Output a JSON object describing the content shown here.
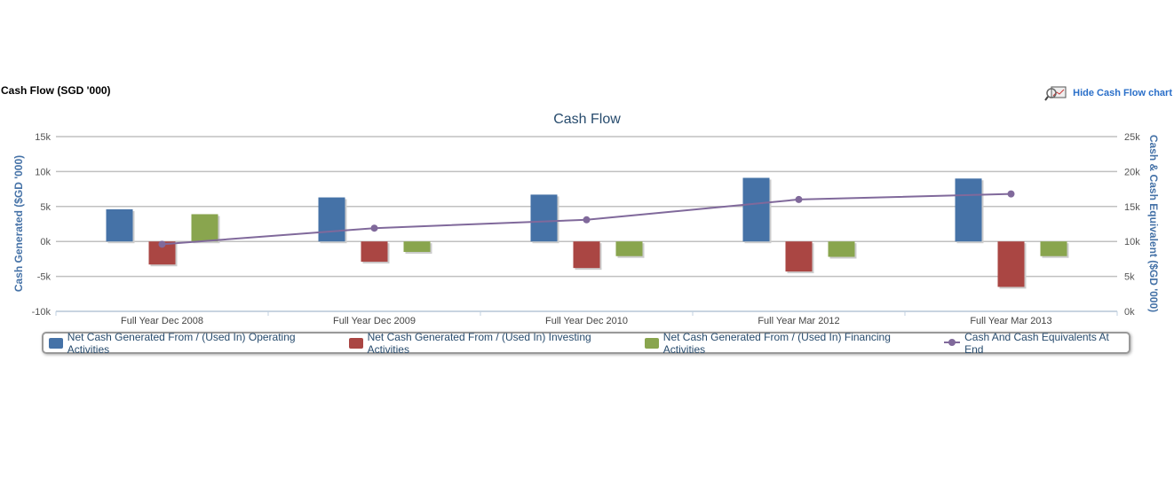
{
  "header": {
    "title": "Cash Flow (SGD '000)",
    "hide_link": "Hide Cash Flow chart"
  },
  "chart_data": {
    "type": "bar",
    "title": "Cash Flow",
    "categories": [
      "Full Year Dec 2008",
      "Full Year Dec 2009",
      "Full Year Dec 2010",
      "Full Year Mar 2012",
      "Full Year Mar 2013"
    ],
    "ylabel": "Cash Generated ($GD '000)",
    "y2label": "Cash & Cash Equivalent ($GD '000)",
    "ylim": [
      -10,
      15
    ],
    "y2lim": [
      0,
      25
    ],
    "yticks": [
      "-10k",
      "-5k",
      "0k",
      "5k",
      "10k",
      "15k"
    ],
    "y2ticks": [
      "0k",
      "5k",
      "10k",
      "15k",
      "20k",
      "25k"
    ],
    "units": "thousands (k)",
    "grid": true,
    "legend_position": "bottom",
    "series": [
      {
        "name": "Net Cash Generated From / (Used In) Operating Activities",
        "type": "bar",
        "axis": "left",
        "color": "#4572a7",
        "values": [
          4.6,
          6.3,
          6.7,
          9.1,
          9.0
        ]
      },
      {
        "name": "Net Cash Generated From / (Used In) Investing Activities",
        "type": "bar",
        "axis": "left",
        "color": "#aa4643",
        "values": [
          -3.3,
          -2.9,
          -3.8,
          -4.3,
          -6.5
        ]
      },
      {
        "name": "Net Cash Generated From / (Used In) Financing Activities",
        "type": "bar",
        "axis": "left",
        "color": "#89a54e",
        "values": [
          3.9,
          -1.5,
          -2.1,
          -2.2,
          -2.1
        ]
      },
      {
        "name": "Cash And Cash Equivalents At End",
        "type": "line",
        "axis": "right",
        "color": "#80699b",
        "values": [
          9.6,
          11.9,
          13.1,
          16.0,
          16.8
        ]
      }
    ]
  }
}
